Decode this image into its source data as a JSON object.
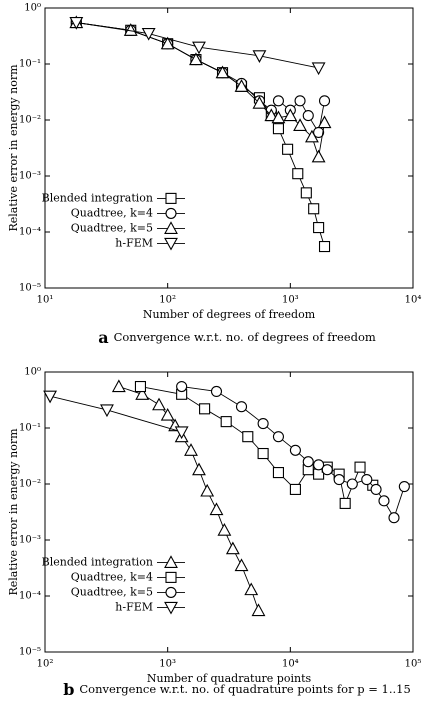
{
  "chart_data": [
    {
      "type": "line",
      "log_x": true,
      "log_y": true,
      "legend_loc": "center left",
      "x_label": "Number of degrees of freedom",
      "y_label": "Relative error in energy norm",
      "caption_label": "a",
      "caption": "Convergence w.r.t. no. of degrees of freedom",
      "xlim": [
        10,
        10000
      ],
      "ylim": [
        1e-05,
        1
      ],
      "xticks": [
        {
          "value": 10,
          "label": "10¹"
        },
        {
          "value": 100,
          "label": "10²"
        },
        {
          "value": 1000,
          "label": "10³"
        },
        {
          "value": 10000,
          "label": "10⁴"
        }
      ],
      "yticks": [
        {
          "value": 1e-05,
          "label": "10⁻⁵"
        },
        {
          "value": 0.0001,
          "label": "10⁻⁴"
        },
        {
          "value": 0.001,
          "label": "10⁻³"
        },
        {
          "value": 0.01,
          "label": "10⁻²"
        },
        {
          "value": 0.1,
          "label": "10⁻¹"
        },
        {
          "value": 1,
          "label": "10⁰"
        }
      ],
      "series": [
        {
          "name": "Blended integration",
          "color": "#000000",
          "marker": "square",
          "x": [
            18,
            50,
            100,
            170,
            280,
            400,
            560,
            700,
            800,
            950,
            1150,
            1350,
            1550,
            1700,
            1900
          ],
          "values": [
            0.55,
            0.4,
            0.23,
            0.12,
            0.07,
            0.04,
            0.025,
            0.012,
            0.007,
            0.003,
            0.0011,
            0.0005,
            0.00026,
            0.00012,
            5.5e-05
          ]
        },
        {
          "name": "Quadtree, k=4",
          "color": "#000000",
          "marker": "circle",
          "x": [
            18,
            50,
            100,
            170,
            280,
            400,
            560,
            700,
            800,
            1000,
            1200,
            1400,
            1700,
            1900
          ],
          "values": [
            0.55,
            0.4,
            0.23,
            0.12,
            0.07,
            0.045,
            0.022,
            0.015,
            0.022,
            0.015,
            0.022,
            0.012,
            0.006,
            0.022
          ]
        },
        {
          "name": "Quadtree, k=5",
          "color": "#000000",
          "marker": "triangle-up",
          "x": [
            18,
            50,
            100,
            170,
            280,
            400,
            560,
            700,
            800,
            1000,
            1200,
            1500,
            1700,
            1900
          ],
          "values": [
            0.55,
            0.4,
            0.23,
            0.12,
            0.07,
            0.04,
            0.02,
            0.012,
            0.011,
            0.012,
            0.008,
            0.005,
            0.0022,
            0.009
          ]
        },
        {
          "name": "h-FEM",
          "color": "#000000",
          "marker": "triangle-down",
          "x": [
            18,
            70,
            180,
            560,
            1700
          ],
          "values": [
            0.55,
            0.35,
            0.2,
            0.14,
            0.085
          ]
        }
      ]
    },
    {
      "type": "line",
      "log_x": true,
      "log_y": true,
      "legend_loc": "center left",
      "x_label": "Number of quadrature points",
      "y_label": "Relative error in energy norm",
      "caption_label": "b",
      "caption": "Convergence w.r.t. no. of quadrature points for p = 1..15",
      "xlim": [
        100,
        100000
      ],
      "ylim": [
        1e-05,
        1
      ],
      "xticks": [
        {
          "value": 100,
          "label": "10²"
        },
        {
          "value": 1000,
          "label": "10³"
        },
        {
          "value": 10000,
          "label": "10⁴"
        },
        {
          "value": 100000,
          "label": "10⁵"
        }
      ],
      "yticks": [
        {
          "value": 1e-05,
          "label": "10⁻⁵"
        },
        {
          "value": 0.0001,
          "label": "10⁻⁴"
        },
        {
          "value": 0.001,
          "label": "10⁻³"
        },
        {
          "value": 0.01,
          "label": "10⁻²"
        },
        {
          "value": 0.1,
          "label": "10⁻¹"
        },
        {
          "value": 1,
          "label": "10⁰"
        }
      ],
      "series": [
        {
          "name": "Blended integration",
          "color": "#000000",
          "marker": "triangle-up",
          "x": [
            400,
            620,
            850,
            1000,
            1150,
            1300,
            1550,
            1800,
            2100,
            2500,
            2900,
            3400,
            4000,
            4800,
            5500
          ],
          "values": [
            0.55,
            0.4,
            0.26,
            0.17,
            0.11,
            0.07,
            0.04,
            0.018,
            0.0075,
            0.0035,
            0.0015,
            0.0007,
            0.00035,
            0.00013,
            5.5e-05
          ]
        },
        {
          "name": "Quadtree, k=4",
          "color": "#000000",
          "marker": "square",
          "x": [
            600,
            1300,
            2000,
            3000,
            4500,
            6000,
            8000,
            11000,
            14000,
            17000,
            20000,
            25000,
            28000,
            37000,
            47000
          ],
          "values": [
            0.55,
            0.4,
            0.22,
            0.13,
            0.07,
            0.035,
            0.016,
            0.008,
            0.018,
            0.015,
            0.02,
            0.015,
            0.0045,
            0.02,
            0.0095
          ]
        },
        {
          "name": "Quadtree, k=5",
          "color": "#000000",
          "marker": "circle",
          "x": [
            1300,
            2500,
            4000,
            6000,
            8000,
            11000,
            14000,
            17000,
            20000,
            25000,
            32000,
            42000,
            50000,
            58000,
            70000,
            85000
          ],
          "values": [
            0.55,
            0.45,
            0.24,
            0.12,
            0.07,
            0.04,
            0.025,
            0.022,
            0.018,
            0.012,
            0.01,
            0.012,
            0.008,
            0.005,
            0.0025,
            0.009
          ]
        },
        {
          "name": "h-FEM",
          "color": "#000000",
          "marker": "triangle-down",
          "x": [
            110,
            320,
            1300
          ],
          "values": [
            0.37,
            0.21,
            0.085
          ]
        }
      ]
    }
  ]
}
